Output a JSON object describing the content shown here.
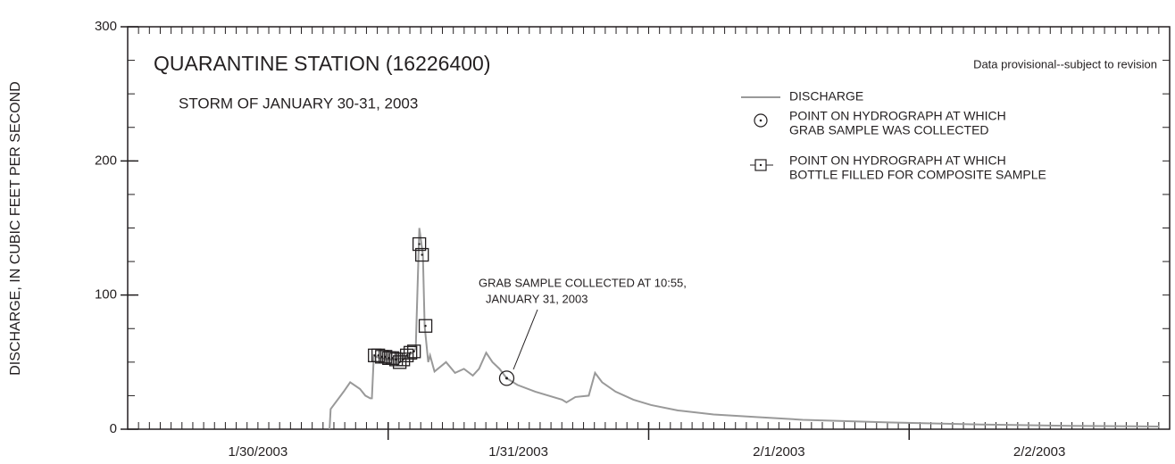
{
  "chart_data": {
    "type": "line",
    "title": "QUARANTINE STATION (16226400)",
    "subtitle": "STORM OF JANUARY 30-31, 2003",
    "note": "Data provisional--subject to revision",
    "ylabel": "DISCHARGE, IN CUBIC FEET PER SECOND",
    "annotation": [
      "GRAB SAMPLE COLLECTED AT 10:55,",
      "JANUARY 31, 2003"
    ],
    "xlim": [
      0,
      96
    ],
    "xticks": [
      0,
      1,
      2,
      3,
      4,
      5,
      6,
      7,
      8,
      9,
      10,
      11,
      12,
      13,
      14,
      15,
      16,
      17,
      18,
      19,
      20,
      21,
      22,
      23,
      24,
      25,
      26,
      27,
      28,
      29,
      30,
      31,
      32,
      33,
      34,
      35,
      36,
      37,
      38,
      39,
      40,
      41,
      42,
      43,
      44,
      45,
      46,
      47,
      48,
      49,
      50,
      51,
      52,
      53,
      54,
      55,
      56,
      57,
      58,
      59,
      60,
      61,
      62,
      63,
      64,
      65,
      66,
      67,
      68,
      69,
      70,
      71,
      72,
      73,
      74,
      75,
      76,
      77,
      78,
      79,
      80,
      81,
      82,
      83,
      84,
      85,
      86,
      87,
      88,
      89,
      90,
      91,
      92,
      93,
      94,
      95,
      96
    ],
    "xmajorticks": [
      24,
      48,
      72
    ],
    "xlabels": [
      {
        "value": 12,
        "label": "1/30/2003"
      },
      {
        "value": 36,
        "label": "1/31/2003"
      },
      {
        "value": 60,
        "label": "2/1/2003"
      },
      {
        "value": 84,
        "label": "2/2/2003"
      }
    ],
    "ylim": [
      0,
      300
    ],
    "yticks": [
      0,
      100,
      200,
      300
    ],
    "yminorticks": [
      0,
      25,
      50,
      75,
      100,
      125,
      150,
      175,
      200,
      225,
      250,
      275,
      300
    ],
    "series": [
      {
        "name": [
          "DISCHARGE"
        ],
        "marker": "line",
        "color": "#999999",
        "x": [
          18.6,
          18.7,
          19.9,
          20.5,
          21.4,
          21.9,
          22.35,
          22.5,
          22.68,
          23.17,
          24.4,
          25.64,
          26.21,
          26.54,
          26.87,
          27.2,
          27.36,
          27.69,
          27.86,
          28.27,
          29.33,
          30.16,
          30.98,
          31.8,
          32.37,
          33.03,
          33.61,
          34.26,
          34.92,
          35.91,
          37.55,
          40.02,
          40.43,
          41.25,
          42.48,
          43.06,
          43.71,
          44.95,
          46.59,
          48.23,
          50.7,
          53.99,
          58.09,
          62.2,
          70.42,
          78.64,
          86.85,
          95.07
        ],
        "values": [
          0,
          15,
          28,
          35,
          30,
          25,
          23,
          23,
          55,
          53,
          52,
          53,
          57,
          60,
          150,
          130,
          77,
          50,
          55,
          43,
          50,
          42,
          45,
          40,
          45,
          57,
          50,
          45,
          38,
          33,
          28,
          22,
          20,
          24,
          25,
          42,
          35,
          28,
          22,
          18,
          14,
          11,
          9,
          7,
          5,
          3.5,
          2.5,
          2
        ]
      },
      {
        "name": [
          "POINT ON HYDROGRAPH AT WHICH",
          "GRAB SAMPLE WAS COLLECTED"
        ],
        "marker": "circle",
        "color": "#231f20",
        "x": [
          34.92
        ],
        "values": [
          38
        ]
      },
      {
        "name": [
          "POINT ON HYDROGRAPH AT WHICH",
          "BOTTLE FILLED FOR COMPOSITE SAMPLE"
        ],
        "marker": "square",
        "color": "#231f20",
        "x": [
          22.76,
          23.09,
          23.42,
          23.75,
          24.08,
          24.4,
          24.73,
          25.06,
          25.39,
          25.72,
          26.05,
          26.38,
          26.87,
          27.12,
          27.44
        ],
        "values": [
          55,
          55,
          54,
          54,
          53,
          53,
          52,
          50,
          52,
          55,
          57,
          58,
          138,
          130,
          77
        ]
      }
    ]
  }
}
